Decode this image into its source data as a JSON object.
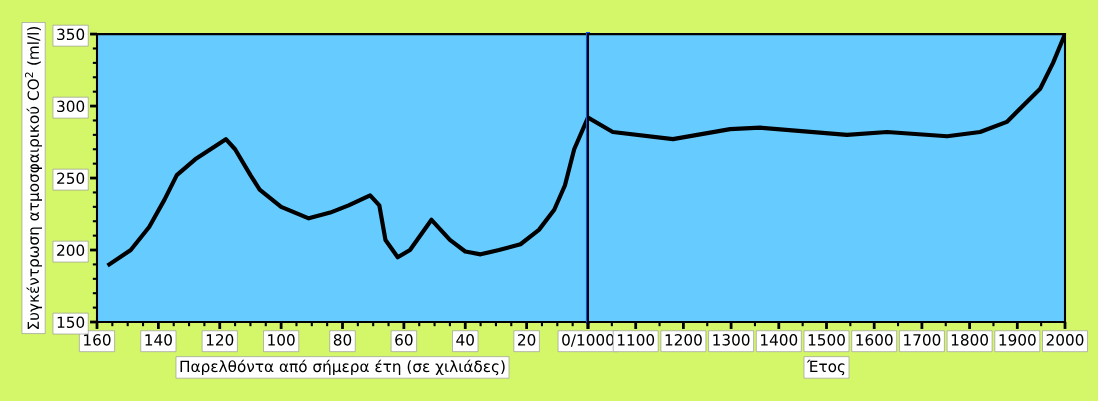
{
  "chart_data": [
    {
      "type": "line",
      "ylabel": "Συγκέντρωση ατμοσφαιρικού CO$^{2}$ (ml/l)",
      "xlabel": "Παρελθόντα από σήμερα έτη (σε χιλιάδες)",
      "xlim": [
        160,
        0
      ],
      "ylim": [
        150,
        350
      ],
      "xticks": [
        160,
        140,
        120,
        100,
        80,
        60,
        40,
        20,
        {
          "value": 0,
          "label": "0/1000"
        }
      ],
      "yticks": [
        150,
        200,
        250,
        300,
        350
      ],
      "grid": false,
      "marker": "none",
      "line_style": "solid",
      "ref_lines": [
        {
          "axis": "x",
          "value": 0,
          "label": null,
          "color": "#0a5cf0"
        }
      ],
      "series": [
        {
          "color": "#000000",
          "x": [
            156,
            149,
            143,
            138,
            134,
            128,
            123,
            118,
            115,
            110,
            107,
            100,
            91,
            84,
            78,
            71,
            68,
            66,
            62,
            58,
            51,
            45,
            40,
            35,
            29,
            22,
            16,
            11,
            7.5,
            4.5,
            0
          ],
          "values": [
            190,
            200,
            216,
            235,
            252,
            263,
            270,
            277,
            270,
            252,
            242,
            230,
            222,
            226,
            231,
            238,
            231,
            207,
            195,
            200,
            221,
            207,
            199,
            197,
            200,
            204,
            214,
            228,
            245,
            270,
            292
          ]
        }
      ]
    },
    {
      "type": "line",
      "xlabel": "Έτος",
      "xlim": [
        1000,
        2000
      ],
      "ylim": [
        150,
        350
      ],
      "xticks": [
        {
          "value": 1000,
          "label": null
        },
        1100,
        1200,
        1300,
        1400,
        1500,
        1600,
        1700,
        1800,
        1900,
        2000
      ],
      "tick_labels": "x",
      "grid": false,
      "marker": "none",
      "line_style": "solid",
      "series": [
        {
          "color": "#000000",
          "x": [
            1000,
            1052,
            1178,
            1298,
            1361,
            1543,
            1627,
            1753,
            1822,
            1878,
            1948,
            1975,
            2000
          ],
          "values": [
            292,
            282,
            277,
            284,
            285,
            280,
            282,
            279,
            282,
            289,
            312,
            330,
            350
          ]
        }
      ]
    }
  ]
}
